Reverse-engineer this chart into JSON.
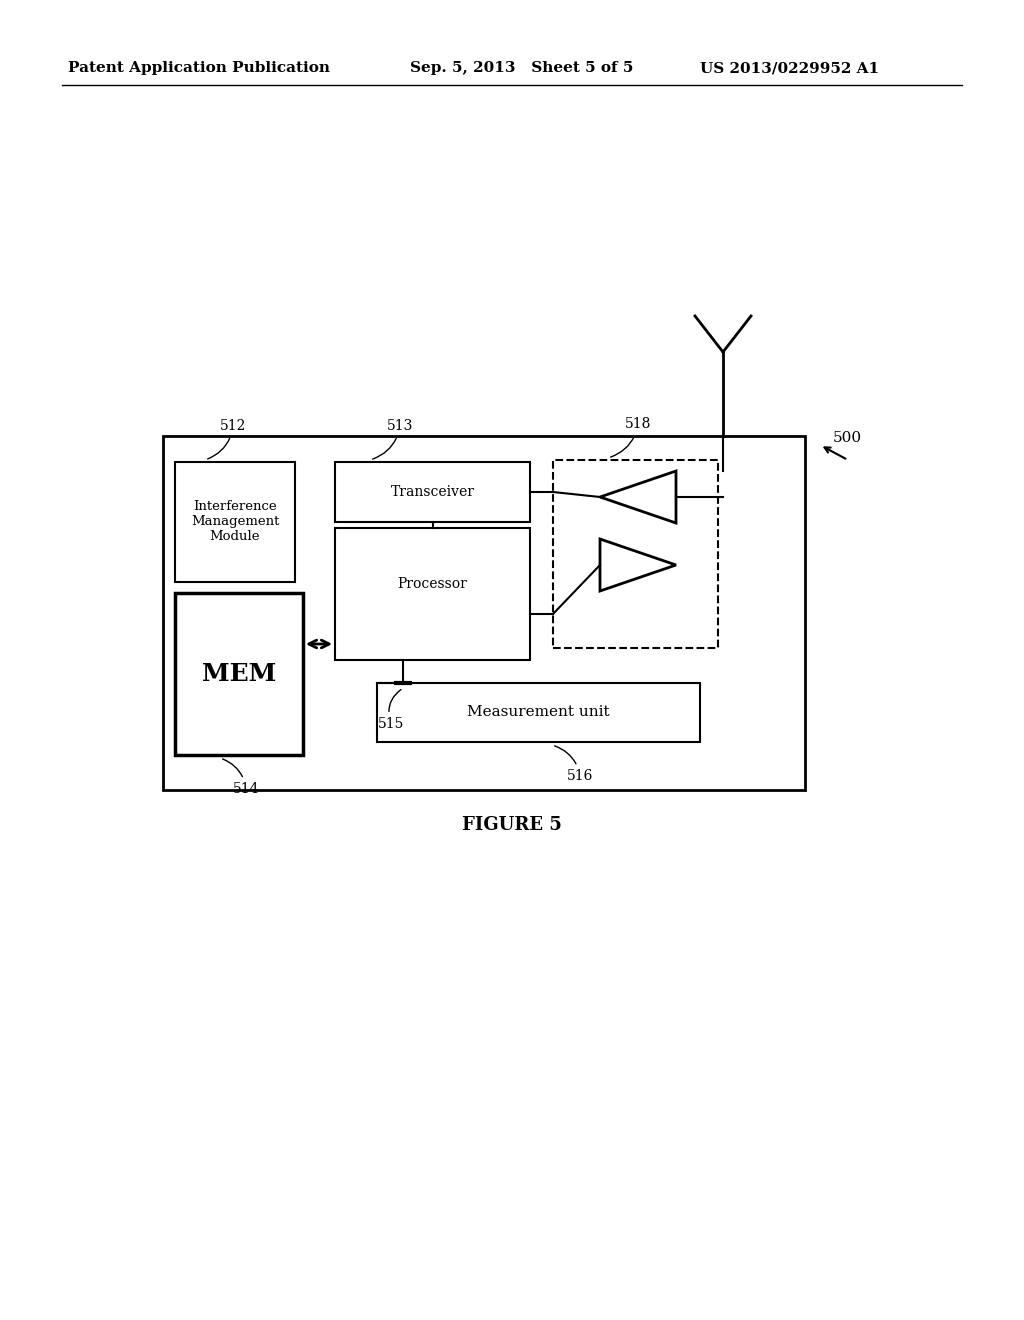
{
  "bg_color": "#ffffff",
  "header_left": "Patent Application Publication",
  "header_mid": "Sep. 5, 2013   Sheet 5 of 5",
  "header_right": "US 2013/0229952 A1",
  "figure_caption": "FIGURE 5",
  "diagram_label": "500"
}
